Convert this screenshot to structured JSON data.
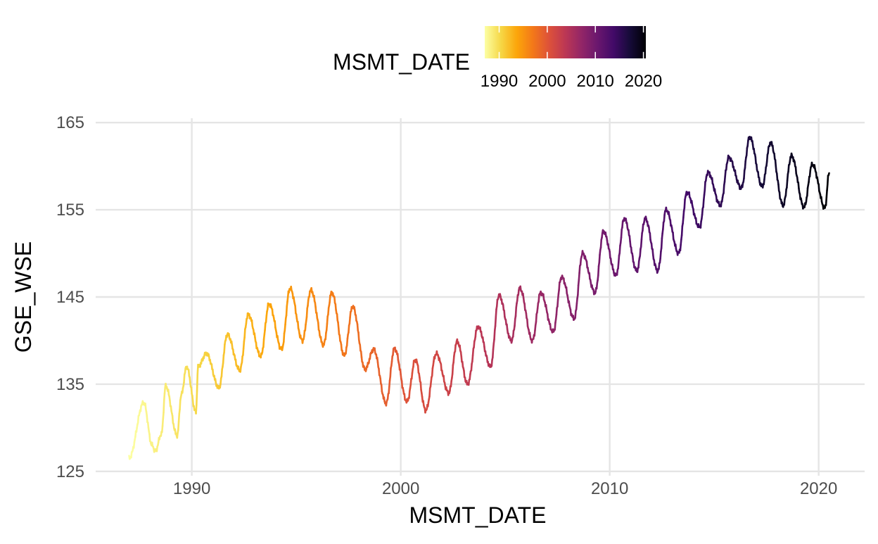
{
  "chart_data": {
    "type": "line",
    "title": "",
    "xlabel": "MSMT_DATE",
    "ylabel": "GSE_WSE",
    "xlim": [
      1985.4,
      2022.2
    ],
    "ylim": [
      124.5,
      165.5
    ],
    "x_ticks": [
      1990,
      2000,
      2010,
      2020
    ],
    "x_tick_labels": [
      "1990",
      "2000",
      "2010",
      "2020"
    ],
    "y_ticks": [
      125,
      135,
      145,
      155,
      165
    ],
    "y_tick_labels": [
      "125",
      "135",
      "145",
      "155",
      "165"
    ],
    "grid": true,
    "legend": {
      "title": "MSMT_DATE",
      "position": "top",
      "type": "colorbar",
      "palette": "inferno (reversed)",
      "range": [
        1987.0,
        2020.5
      ],
      "breaks": [
        1990,
        2000,
        2010,
        2020
      ],
      "labels": [
        "1990",
        "2000",
        "2010",
        "2020"
      ]
    },
    "color_scale": {
      "stops": [
        "#fcffa4",
        "#f6d746",
        "#fca50a",
        "#f37819",
        "#dd513a",
        "#bc3754",
        "#932667",
        "#6a176e",
        "#420a68",
        "#160b39",
        "#000004"
      ]
    },
    "series": [
      {
        "x": [
          1987.0,
          1987.7,
          1988.1,
          1988.25,
          1988.55,
          1988.75,
          1989.3,
          1989.5,
          1989.75,
          1990.2,
          1990.3,
          1990.7,
          1991.3,
          1991.7,
          1992.3,
          1992.7,
          1993.3,
          1993.7,
          1994.3,
          1994.7,
          1995.3,
          1995.7,
          1996.3,
          1996.7,
          1997.3,
          1997.7,
          1998.3,
          1998.7,
          1999.3,
          1999.7,
          2000.3,
          2000.7,
          2001.2,
          2001.7,
          2002.3,
          2002.7,
          2003.2,
          2003.7,
          2004.3,
          2004.7,
          2005.3,
          2005.7,
          2006.3,
          2006.7,
          2007.3,
          2007.7,
          2008.3,
          2008.7,
          2009.3,
          2009.7,
          2010.3,
          2010.7,
          2011.3,
          2011.7,
          2012.3,
          2012.7,
          2013.3,
          2013.7,
          2014.3,
          2014.7,
          2015.3,
          2015.7,
          2016.3,
          2016.7,
          2017.3,
          2017.7,
          2018.3,
          2018.7,
          2019.3,
          2019.7,
          2020.3,
          2020.5
        ],
        "y": [
          126.5,
          132.9,
          128.0,
          127.3,
          129.3,
          134.8,
          129.1,
          133.8,
          137.0,
          131.8,
          137.0,
          138.5,
          134.6,
          140.7,
          136.6,
          143.0,
          138.2,
          144.2,
          139.0,
          146.0,
          140.0,
          145.8,
          139.5,
          145.5,
          138.3,
          143.9,
          136.7,
          139.0,
          132.8,
          139.1,
          133.0,
          137.8,
          132.0,
          138.5,
          134.0,
          139.9,
          135.0,
          141.6,
          137.0,
          145.2,
          140.0,
          146.0,
          140.0,
          145.5,
          141.0,
          147.3,
          142.5,
          150.0,
          145.5,
          152.5,
          147.5,
          154.0,
          148.0,
          154.0,
          148.0,
          155.0,
          150.0,
          157.0,
          153.0,
          159.3,
          155.5,
          161.0,
          157.5,
          163.3,
          157.7,
          162.7,
          155.5,
          161.2,
          155.3,
          160.2,
          155.2,
          159.2
        ]
      }
    ]
  }
}
